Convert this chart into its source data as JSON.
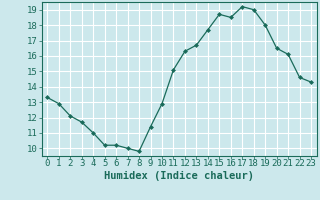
{
  "x": [
    0,
    1,
    2,
    3,
    4,
    5,
    6,
    7,
    8,
    9,
    10,
    11,
    12,
    13,
    14,
    15,
    16,
    17,
    18,
    19,
    20,
    21,
    22,
    23
  ],
  "y": [
    13.3,
    12.9,
    12.1,
    11.7,
    11.0,
    10.2,
    10.2,
    10.0,
    9.8,
    11.4,
    12.9,
    15.1,
    16.3,
    16.7,
    17.7,
    18.7,
    18.5,
    19.2,
    19.0,
    18.0,
    16.5,
    16.1,
    14.6,
    14.3
  ],
  "xlabel": "Humidex (Indice chaleur)",
  "xlim": [
    -0.5,
    23.5
  ],
  "ylim": [
    9.5,
    19.5
  ],
  "yticks": [
    10,
    11,
    12,
    13,
    14,
    15,
    16,
    17,
    18,
    19
  ],
  "xticks": [
    0,
    1,
    2,
    3,
    4,
    5,
    6,
    7,
    8,
    9,
    10,
    11,
    12,
    13,
    14,
    15,
    16,
    17,
    18,
    19,
    20,
    21,
    22,
    23
  ],
  "line_color": "#1a6b5a",
  "marker": "D",
  "marker_size": 2.0,
  "bg_color": "#cce8ec",
  "grid_color": "#ffffff",
  "tick_color": "#1a6b5a",
  "label_color": "#1a6b5a",
  "xlabel_fontsize": 7.5,
  "tick_fontsize": 6.5
}
